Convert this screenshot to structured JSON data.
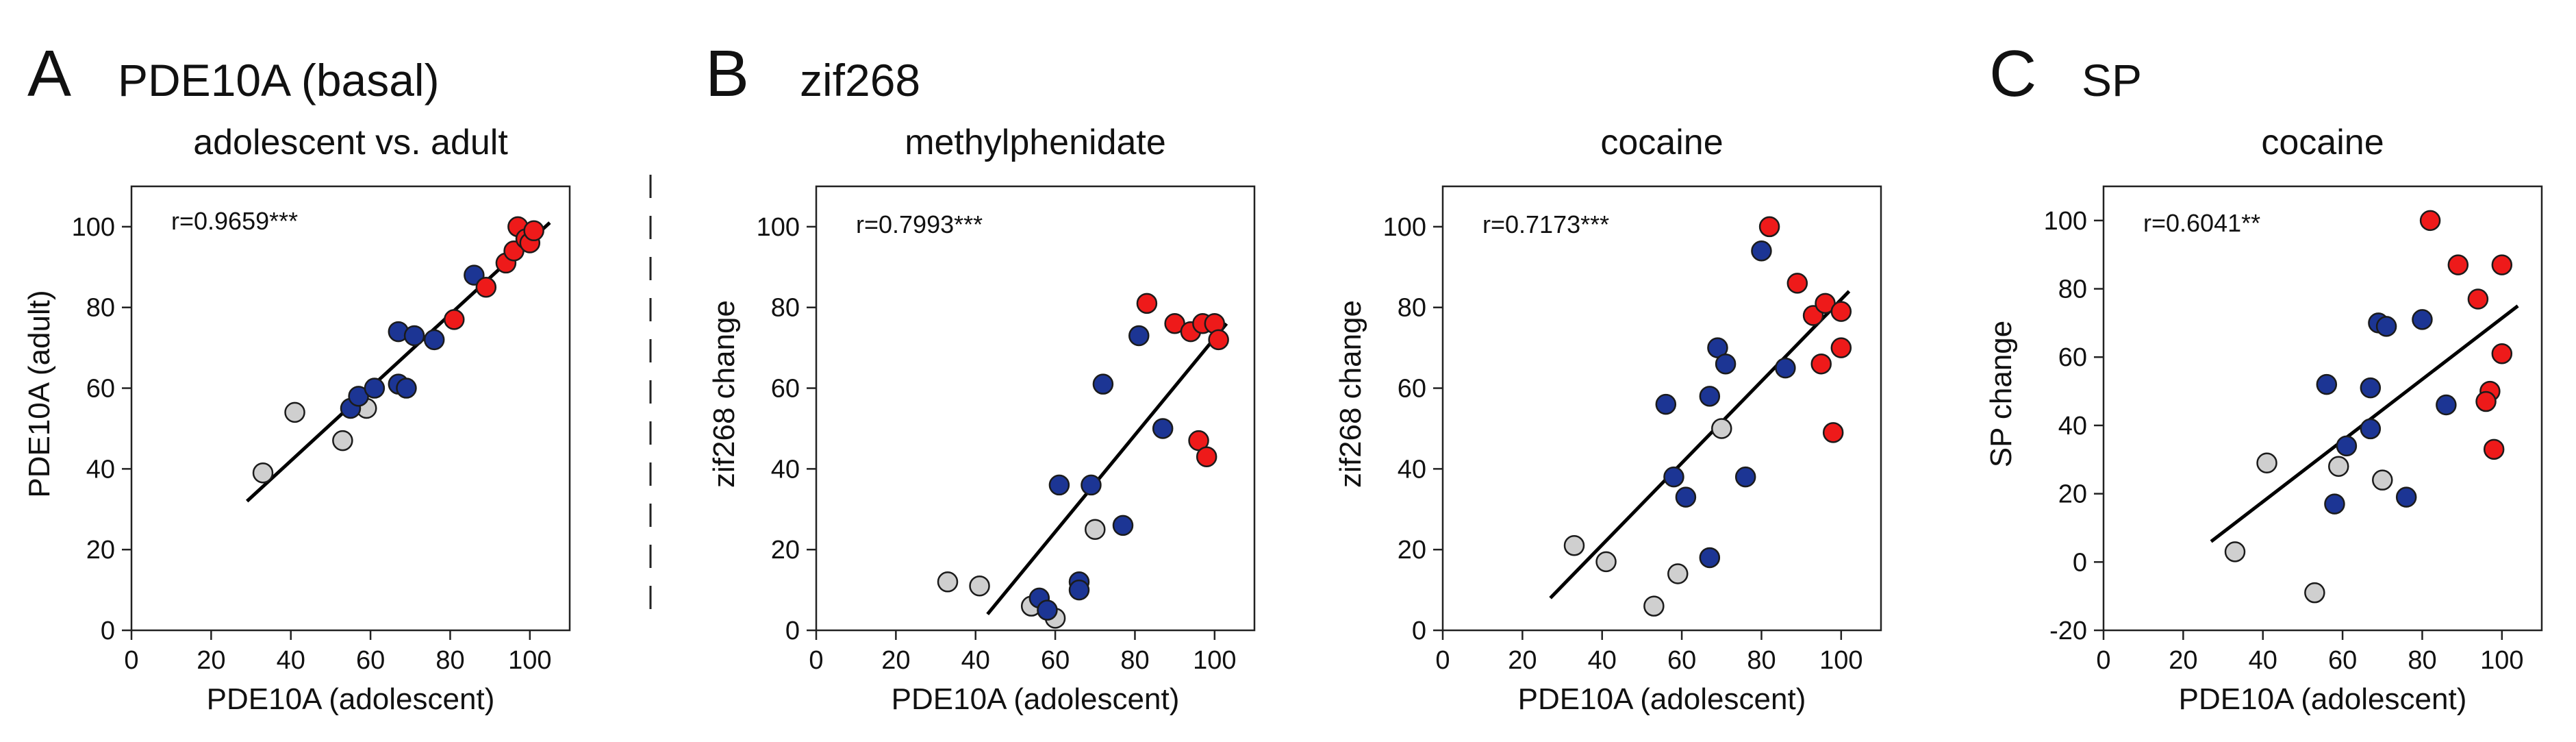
{
  "colors": {
    "gray": "#cfcfcf",
    "blue": "#1c3594",
    "red": "#ee1a1a"
  },
  "headings": [
    {
      "letter": "A",
      "title": "PDE10A (basal)"
    },
    {
      "letter": "B",
      "title": "zif268"
    },
    {
      "letter": "C",
      "title": "SP"
    }
  ],
  "chart_data": [
    {
      "type": "scatter",
      "panel": "A",
      "title": "adolescent vs. adult",
      "xlabel": "PDE10A (adolescent)",
      "ylabel": "PDE10A (adult)",
      "stat": "r=0.9659***",
      "xlim": [
        0,
        110
      ],
      "ylim": [
        0,
        110
      ],
      "xticks": [
        0,
        20,
        40,
        60,
        80,
        100
      ],
      "yticks": [
        0,
        20,
        40,
        60,
        80,
        100
      ],
      "fit": {
        "x": [
          29,
          105
        ],
        "y": [
          32,
          101
        ]
      },
      "points": [
        {
          "x": 33,
          "y": 39,
          "group": "gray"
        },
        {
          "x": 41,
          "y": 54,
          "group": "gray"
        },
        {
          "x": 53,
          "y": 47,
          "group": "gray"
        },
        {
          "x": 59,
          "y": 55,
          "group": "gray"
        },
        {
          "x": 55,
          "y": 55,
          "group": "blue"
        },
        {
          "x": 57,
          "y": 58,
          "group": "blue"
        },
        {
          "x": 61,
          "y": 60,
          "group": "blue"
        },
        {
          "x": 67,
          "y": 61,
          "group": "blue"
        },
        {
          "x": 69,
          "y": 60,
          "group": "blue"
        },
        {
          "x": 67,
          "y": 74,
          "group": "blue"
        },
        {
          "x": 71,
          "y": 73,
          "group": "blue"
        },
        {
          "x": 76,
          "y": 72,
          "group": "blue"
        },
        {
          "x": 86,
          "y": 88,
          "group": "blue"
        },
        {
          "x": 81,
          "y": 77,
          "group": "red"
        },
        {
          "x": 89,
          "y": 85,
          "group": "red"
        },
        {
          "x": 94,
          "y": 91,
          "group": "red"
        },
        {
          "x": 96,
          "y": 94,
          "group": "red"
        },
        {
          "x": 97,
          "y": 100,
          "group": "red"
        },
        {
          "x": 99,
          "y": 97,
          "group": "red"
        },
        {
          "x": 100,
          "y": 96,
          "group": "red"
        },
        {
          "x": 101,
          "y": 99,
          "group": "red"
        }
      ]
    },
    {
      "type": "scatter",
      "panel": "B",
      "title": "methylphenidate",
      "xlabel": "PDE10A (adolescent)",
      "ylabel": "zif268 change",
      "stat": "r=0.7993***",
      "xlim": [
        0,
        110
      ],
      "ylim": [
        0,
        110
      ],
      "xticks": [
        0,
        20,
        40,
        60,
        80,
        100
      ],
      "yticks": [
        0,
        20,
        40,
        60,
        80,
        100
      ],
      "fit": {
        "x": [
          43,
          103
        ],
        "y": [
          4,
          76
        ]
      },
      "points": [
        {
          "x": 33,
          "y": 12,
          "group": "gray"
        },
        {
          "x": 41,
          "y": 11,
          "group": "gray"
        },
        {
          "x": 54,
          "y": 6,
          "group": "gray"
        },
        {
          "x": 60,
          "y": 3,
          "group": "gray"
        },
        {
          "x": 70,
          "y": 25,
          "group": "gray"
        },
        {
          "x": 56,
          "y": 8,
          "group": "blue"
        },
        {
          "x": 58,
          "y": 5,
          "group": "blue"
        },
        {
          "x": 61,
          "y": 36,
          "group": "blue"
        },
        {
          "x": 66,
          "y": 12,
          "group": "blue"
        },
        {
          "x": 66,
          "y": 10,
          "group": "blue"
        },
        {
          "x": 69,
          "y": 36,
          "group": "blue"
        },
        {
          "x": 72,
          "y": 61,
          "group": "blue"
        },
        {
          "x": 77,
          "y": 26,
          "group": "blue"
        },
        {
          "x": 81,
          "y": 73,
          "group": "blue"
        },
        {
          "x": 87,
          "y": 50,
          "group": "blue"
        },
        {
          "x": 83,
          "y": 81,
          "group": "red"
        },
        {
          "x": 90,
          "y": 76,
          "group": "red"
        },
        {
          "x": 94,
          "y": 74,
          "group": "red"
        },
        {
          "x": 97,
          "y": 76,
          "group": "red"
        },
        {
          "x": 100,
          "y": 76,
          "group": "red"
        },
        {
          "x": 101,
          "y": 72,
          "group": "red"
        },
        {
          "x": 96,
          "y": 47,
          "group": "red"
        },
        {
          "x": 98,
          "y": 43,
          "group": "red"
        }
      ]
    },
    {
      "type": "scatter",
      "panel": "B",
      "title": "cocaine",
      "xlabel": "PDE10A (adolescent)",
      "ylabel": "zif268 change",
      "stat": "r=0.7173***",
      "xlim": [
        0,
        110
      ],
      "ylim": [
        0,
        110
      ],
      "xticks": [
        0,
        20,
        40,
        60,
        80,
        100
      ],
      "yticks": [
        0,
        20,
        40,
        60,
        80,
        100
      ],
      "fit": {
        "x": [
          27,
          102
        ],
        "y": [
          8,
          84
        ]
      },
      "points": [
        {
          "x": 33,
          "y": 21,
          "group": "gray"
        },
        {
          "x": 41,
          "y": 17,
          "group": "gray"
        },
        {
          "x": 53,
          "y": 6,
          "group": "gray"
        },
        {
          "x": 59,
          "y": 14,
          "group": "gray"
        },
        {
          "x": 70,
          "y": 50,
          "group": "gray"
        },
        {
          "x": 56,
          "y": 56,
          "group": "blue"
        },
        {
          "x": 58,
          "y": 38,
          "group": "blue"
        },
        {
          "x": 61,
          "y": 33,
          "group": "blue"
        },
        {
          "x": 67,
          "y": 58,
          "group": "blue"
        },
        {
          "x": 67,
          "y": 18,
          "group": "blue"
        },
        {
          "x": 69,
          "y": 70,
          "group": "blue"
        },
        {
          "x": 71,
          "y": 66,
          "group": "blue"
        },
        {
          "x": 76,
          "y": 38,
          "group": "blue"
        },
        {
          "x": 80,
          "y": 94,
          "group": "blue"
        },
        {
          "x": 86,
          "y": 65,
          "group": "blue"
        },
        {
          "x": 82,
          "y": 100,
          "group": "red"
        },
        {
          "x": 89,
          "y": 86,
          "group": "red"
        },
        {
          "x": 93,
          "y": 78,
          "group": "red"
        },
        {
          "x": 96,
          "y": 81,
          "group": "red"
        },
        {
          "x": 100,
          "y": 79,
          "group": "red"
        },
        {
          "x": 95,
          "y": 66,
          "group": "red"
        },
        {
          "x": 100,
          "y": 70,
          "group": "red"
        },
        {
          "x": 98,
          "y": 49,
          "group": "red"
        }
      ]
    },
    {
      "type": "scatter",
      "panel": "C",
      "title": "cocaine",
      "xlabel": "PDE10A (adolescent)",
      "ylabel": "SP change",
      "stat": "r=0.6041**",
      "xlim": [
        0,
        110
      ],
      "ylim": [
        -20,
        110
      ],
      "xticks": [
        0,
        20,
        40,
        60,
        80,
        100
      ],
      "yticks": [
        -20,
        0,
        20,
        40,
        60,
        80,
        100
      ],
      "fit": {
        "x": [
          27,
          104
        ],
        "y": [
          6,
          75
        ]
      },
      "points": [
        {
          "x": 33,
          "y": 3,
          "group": "gray"
        },
        {
          "x": 41,
          "y": 29,
          "group": "gray"
        },
        {
          "x": 53,
          "y": -9,
          "group": "gray"
        },
        {
          "x": 59,
          "y": 28,
          "group": "gray"
        },
        {
          "x": 70,
          "y": 24,
          "group": "gray"
        },
        {
          "x": 56,
          "y": 52,
          "group": "blue"
        },
        {
          "x": 58,
          "y": 17,
          "group": "blue"
        },
        {
          "x": 61,
          "y": 34,
          "group": "blue"
        },
        {
          "x": 67,
          "y": 51,
          "group": "blue"
        },
        {
          "x": 67,
          "y": 39,
          "group": "blue"
        },
        {
          "x": 69,
          "y": 70,
          "group": "blue"
        },
        {
          "x": 71,
          "y": 69,
          "group": "blue"
        },
        {
          "x": 76,
          "y": 19,
          "group": "blue"
        },
        {
          "x": 80,
          "y": 71,
          "group": "blue"
        },
        {
          "x": 86,
          "y": 46,
          "group": "blue"
        },
        {
          "x": 82,
          "y": 100,
          "group": "red"
        },
        {
          "x": 89,
          "y": 87,
          "group": "red"
        },
        {
          "x": 94,
          "y": 77,
          "group": "red"
        },
        {
          "x": 100,
          "y": 87,
          "group": "red"
        },
        {
          "x": 100,
          "y": 61,
          "group": "red"
        },
        {
          "x": 97,
          "y": 50,
          "group": "red"
        },
        {
          "x": 96,
          "y": 47,
          "group": "red"
        },
        {
          "x": 98,
          "y": 33,
          "group": "red"
        }
      ]
    }
  ]
}
